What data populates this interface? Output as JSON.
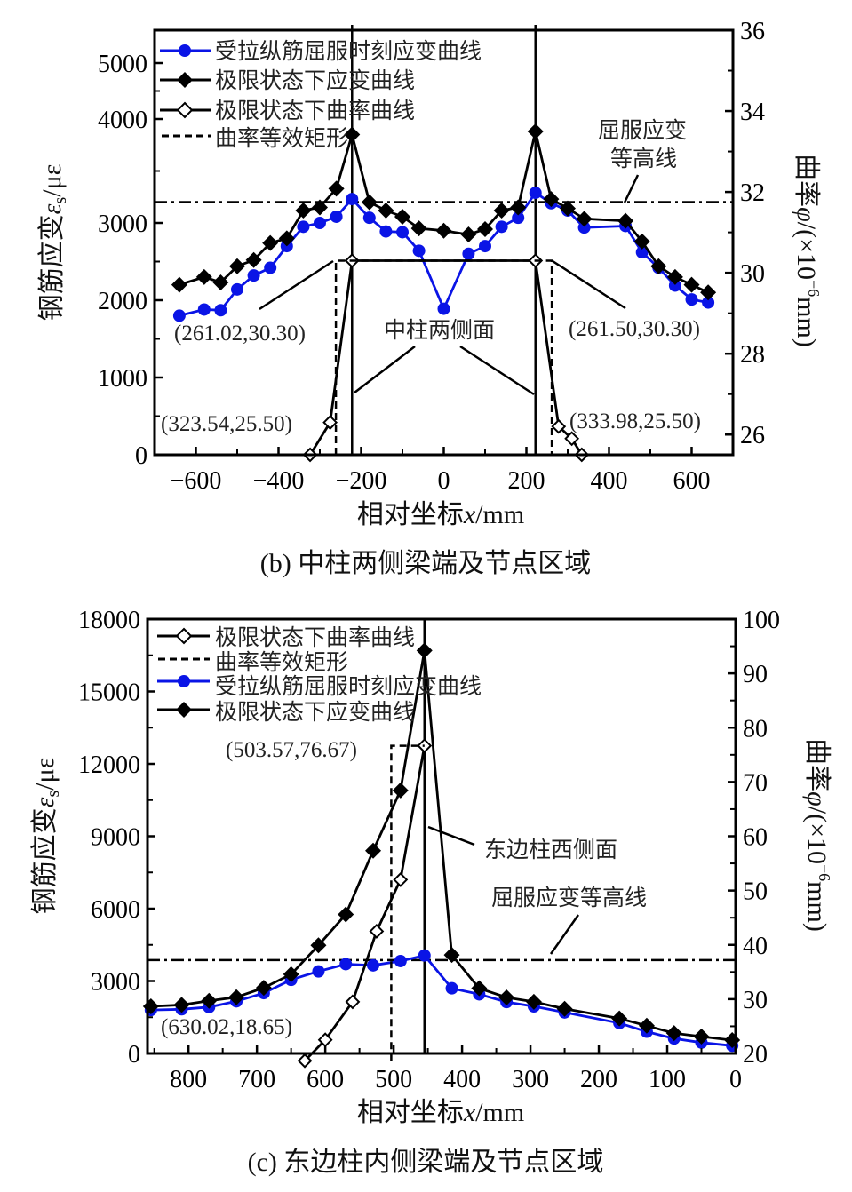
{
  "colors": {
    "blue": "#0a14e6",
    "black": "#000000"
  },
  "chart_data": [
    {
      "id": "b",
      "type": "line",
      "caption": "(b)  中柱两侧梁端及节点区域",
      "xlabel_main": "相对坐标",
      "xlabel_var": "x",
      "xlabel_unit": "/mm",
      "ylabel_main": "钢筋应变",
      "ylabel_var": "ε",
      "ylabel_sub": "s",
      "ylabel_unit": "/με",
      "y2label_main": "曲率",
      "y2label_var": "φ",
      "y2label_unit_a": "/(×10",
      "y2label_exp": "−6",
      "y2label_unit_b": "mm)",
      "xlim": [
        -700,
        700
      ],
      "xticks": [
        -600,
        -400,
        -200,
        0,
        200,
        400,
        600
      ],
      "xtick_labels": [
        "−600",
        "−400",
        "−200",
        "0",
        "200",
        "400",
        "600"
      ],
      "ylim": [
        0,
        5500
      ],
      "yticks": [
        0,
        1000,
        2000,
        3000,
        4000,
        5000
      ],
      "ytick_labels": [
        "0",
        "1000",
        "2000",
        "3000",
        "4000",
        "5000"
      ],
      "y2lim": [
        25.5,
        36
      ],
      "y2ticks": [
        26,
        28,
        30,
        32,
        34,
        36
      ],
      "y2tick_labels": [
        "26",
        "28",
        "30",
        "32",
        "34",
        "36"
      ],
      "legend": [
        "受拉纵筋屈服时刻应变曲线",
        "极限状态下应变曲线",
        "极限状态下曲率曲线",
        "曲率等效矩形"
      ],
      "series": [
        {
          "name": "受拉纵筋屈服时刻应变曲线",
          "axis": "left",
          "marker": "circle",
          "x": [
            -640,
            -580,
            -540,
            -500,
            -460,
            -420,
            -380,
            -340,
            -300,
            -260,
            -222,
            -180,
            -140,
            -100,
            -60,
            0,
            60,
            100,
            140,
            180,
            222,
            260,
            300,
            340,
            440,
            480,
            520,
            560,
            600,
            640
          ],
          "y": [
            1800,
            1880,
            1870,
            2140,
            2320,
            2420,
            2700,
            2950,
            3000,
            3060,
            3230,
            3050,
            2890,
            2880,
            2640,
            1890,
            2600,
            2700,
            2950,
            3050,
            3290,
            3190,
            3120,
            2940,
            2960,
            2620,
            2420,
            2190,
            2010,
            1970
          ]
        },
        {
          "name": "极限状态下应变曲线",
          "axis": "left",
          "marker": "diamond",
          "x": [
            -640,
            -580,
            -540,
            -500,
            -460,
            -420,
            -380,
            -340,
            -300,
            -260,
            -222,
            -180,
            -140,
            -100,
            -60,
            0,
            60,
            100,
            140,
            180,
            222,
            260,
            300,
            340,
            440,
            480,
            520,
            560,
            600,
            640
          ],
          "y": [
            2200,
            2300,
            2230,
            2440,
            2520,
            2740,
            2800,
            3120,
            3150,
            3330,
            3850,
            3200,
            3120,
            3060,
            2930,
            2900,
            2850,
            2920,
            3120,
            3150,
            3880,
            3230,
            3140,
            3040,
            3020,
            2760,
            2440,
            2300,
            2200,
            2100
          ]
        },
        {
          "name": "极限状态下曲率曲线",
          "axis": "right",
          "marker": "open-diamond",
          "x": [
            -323.54,
            -275,
            -222,
            222,
            278,
            310,
            333.98
          ],
          "y": [
            25.5,
            26.3,
            30.3,
            30.3,
            26.2,
            25.9,
            25.5
          ]
        },
        {
          "name": "曲率等效矩形",
          "axis": "right",
          "style": "dashed",
          "x": [
            -261.02,
            -261.02,
            -222,
            222,
            261.5,
            261.5
          ],
          "y": [
            25.5,
            30.3,
            30.3,
            30.3,
            30.3,
            25.5
          ]
        }
      ],
      "column_face_x": [
        -222,
        222
      ],
      "yield_line_y2": 31.75,
      "annotations": [
        {
          "text": "(261.02,30.30)"
        },
        {
          "text": "(261.50,30.30)"
        },
        {
          "text": "(323.54,25.50)"
        },
        {
          "text": "(333.98,25.50)"
        },
        {
          "text": "中柱两侧面"
        },
        {
          "text": "屈服应变"
        },
        {
          "text": "等高线"
        }
      ]
    },
    {
      "id": "c",
      "type": "line",
      "caption": "(c)  东边柱内侧梁端及节点区域",
      "xlabel_main": "相对坐标",
      "xlabel_var": "x",
      "xlabel_unit": "/mm",
      "ylabel_main": "钢筋应变",
      "ylabel_var": "ε",
      "ylabel_sub": "s",
      "ylabel_unit": "/με",
      "y2label_main": "曲率",
      "y2label_var": "φ",
      "y2label_unit_a": "/(×10",
      "y2label_exp": "−6",
      "y2label_unit_b": "mm)",
      "xlim": [
        860,
        0
      ],
      "xticks": [
        800,
        700,
        600,
        500,
        400,
        300,
        200,
        100,
        0
      ],
      "xtick_labels": [
        "800",
        "700",
        "600",
        "500",
        "400",
        "300",
        "200",
        "100",
        "0"
      ],
      "ylim": [
        0,
        18000
      ],
      "yticks": [
        0,
        3000,
        6000,
        9000,
        12000,
        15000,
        18000
      ],
      "ytick_labels": [
        "0",
        "3000",
        "6000",
        "9000",
        "12000",
        "15000",
        "18000"
      ],
      "y2lim": [
        20,
        100
      ],
      "y2ticks": [
        20,
        30,
        40,
        50,
        60,
        70,
        80,
        90,
        100
      ],
      "y2tick_labels": [
        "20",
        "30",
        "40",
        "50",
        "60",
        "70",
        "80",
        "90",
        "100"
      ],
      "legend": [
        "极限状态下曲率曲线",
        "曲率等效矩形",
        "受拉纵筋屈服时刻应变曲线",
        "极限状态下应变曲线"
      ],
      "series": [
        {
          "name": "受拉纵筋屈服时刻应变曲线",
          "axis": "left",
          "marker": "circle",
          "x": [
            855,
            810,
            770,
            730,
            690,
            650,
            610,
            570,
            530,
            490,
            455,
            415,
            375,
            335,
            295,
            250,
            170,
            130,
            90,
            50,
            5
          ],
          "y": [
            1800,
            1830,
            1920,
            2160,
            2500,
            3050,
            3400,
            3700,
            3650,
            3830,
            4060,
            2700,
            2450,
            2130,
            1950,
            1700,
            1260,
            900,
            620,
            450,
            320
          ]
        },
        {
          "name": "极限状态下应变曲线",
          "axis": "left",
          "marker": "diamond",
          "x": [
            855,
            810,
            770,
            730,
            690,
            650,
            610,
            570,
            530,
            490,
            455,
            415,
            375,
            335,
            295,
            250,
            170,
            130,
            90,
            50,
            5
          ],
          "y": [
            1950,
            2010,
            2180,
            2330,
            2720,
            3280,
            4480,
            5760,
            8400,
            10900,
            16700,
            4080,
            2700,
            2320,
            2140,
            1850,
            1450,
            1150,
            840,
            700,
            550
          ]
        },
        {
          "name": "极限状态下曲率曲线",
          "axis": "right",
          "marker": "open-diamond",
          "x": [
            630.02,
            600,
            560,
            525,
            490,
            455
          ],
          "y": [
            18.65,
            22.5,
            29.5,
            42.5,
            52,
            76.67
          ]
        },
        {
          "name": "曲率等效矩形",
          "axis": "right",
          "style": "dashed",
          "x": [
            503.57,
            503.57,
            455
          ],
          "y": [
            18.65,
            76.67,
            76.67
          ]
        }
      ],
      "column_face_x": [
        455
      ],
      "yield_line_y2": 37.2,
      "annotations": [
        {
          "text": "(503.57,76.67)"
        },
        {
          "text": "(630.02,18.65)"
        },
        {
          "text": "东边柱西侧面"
        },
        {
          "text": "屈服应变等高线"
        }
      ]
    }
  ]
}
